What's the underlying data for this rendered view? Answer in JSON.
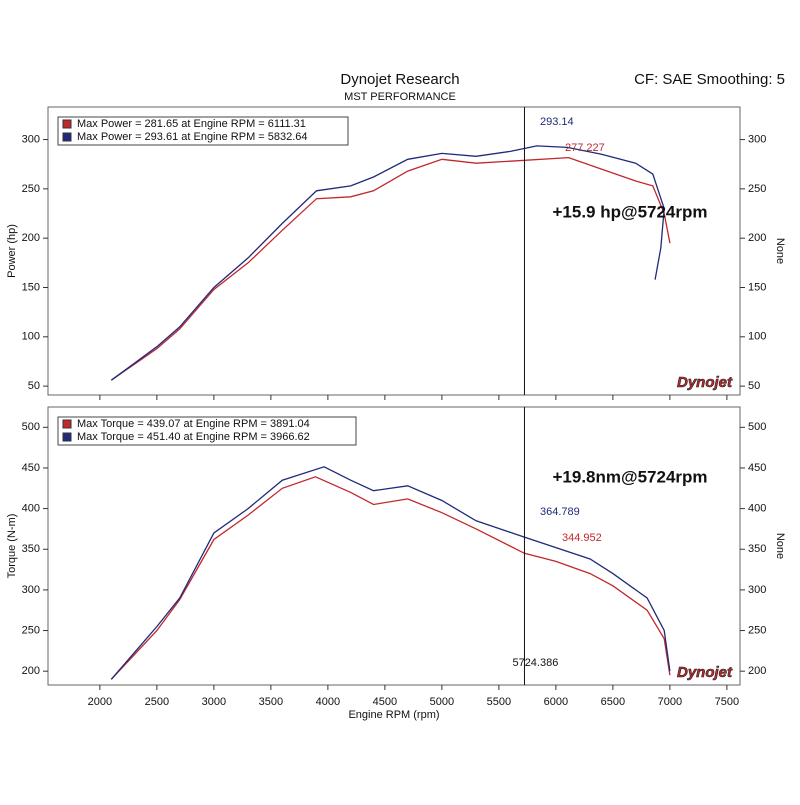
{
  "header": {
    "title": "Dynojet Research",
    "subtitle": "MST PERFORMANCE",
    "settings": "CF: SAE Smoothing: 5"
  },
  "chart_data": [
    {
      "type": "line",
      "ylabel": "Power (hp)",
      "y2label": "None",
      "annotation": "+15.9 hp@5724rpm",
      "logo": "Dynojet",
      "xlim": [
        1545,
        7615
      ],
      "xticks": [
        2000,
        2500,
        3000,
        3500,
        4000,
        4500,
        5000,
        5500,
        6000,
        6500,
        7000,
        7500
      ],
      "ylim": [
        41,
        333
      ],
      "yticks": [
        50,
        100,
        150,
        200,
        250,
        300
      ],
      "y2lim": [
        41,
        333
      ],
      "y2ticks": [
        50,
        100,
        150,
        200,
        250,
        300
      ],
      "cursor": 5724.386,
      "cursor_values": [
        293.14,
        277.227
      ],
      "series": [
        {
          "name": "Max Power = 281.65 at Engine RPM = 6111.31",
          "color": "#c0282d",
          "x": [
            2100,
            2500,
            2700,
            3000,
            3300,
            3600,
            3900,
            4200,
            4400,
            4700,
            5000,
            5300,
            5600,
            6111.31,
            6400,
            6700,
            6850,
            6950,
            7000
          ],
          "values": [
            56,
            88,
            108,
            148,
            175,
            208,
            240,
            242,
            248,
            268,
            280,
            276,
            278,
            281.65,
            270,
            258,
            253,
            225,
            195
          ]
        },
        {
          "name": "Max Power = 293.61 at Engine RPM = 5832.64",
          "color": "#1f2a7a",
          "x": [
            2100,
            2500,
            2700,
            3000,
            3300,
            3600,
            3900,
            4200,
            4400,
            4700,
            5000,
            5300,
            5600,
            5832.64,
            6100,
            6400,
            6700,
            6850,
            6950,
            6920,
            6870
          ],
          "values": [
            56,
            90,
            110,
            150,
            180,
            215,
            248,
            253,
            262,
            280,
            286,
            283,
            288,
            293.61,
            292,
            285,
            276,
            265,
            230,
            190,
            158
          ]
        }
      ]
    },
    {
      "type": "line",
      "ylabel": "Torque (N-m)",
      "y2label": "None",
      "xlabel": "Engine RPM (rpm)",
      "annotation": "+19.8nm@5724rpm",
      "logo": "Dynojet",
      "xlim": [
        1545,
        7615
      ],
      "xticks": [
        2000,
        2500,
        3000,
        3500,
        4000,
        4500,
        5000,
        5500,
        6000,
        6500,
        7000,
        7500
      ],
      "ylim": [
        183,
        525
      ],
      "yticks": [
        200,
        250,
        300,
        350,
        400,
        450,
        500
      ],
      "y2lim": [
        183,
        525
      ],
      "y2ticks": [
        200,
        250,
        300,
        350,
        400,
        450,
        500
      ],
      "cursor": 5724.386,
      "cursor_values": [
        364.789,
        344.952
      ],
      "series": [
        {
          "name": "Max Torque = 439.07 at Engine RPM = 3891.04",
          "color": "#c0282d",
          "x": [
            2100,
            2500,
            2700,
            3000,
            3300,
            3600,
            3891.04,
            4200,
            4400,
            4700,
            5000,
            5300,
            5724,
            6000,
            6300,
            6500,
            6800,
            6950,
            7000
          ],
          "values": [
            190,
            250,
            288,
            362,
            392,
            425,
            439.07,
            420,
            405,
            412,
            395,
            375,
            345,
            335,
            320,
            305,
            275,
            240,
            195
          ]
        },
        {
          "name": "Max Torque = 451.40 at Engine RPM = 3966.62",
          "color": "#1f2a7a",
          "x": [
            2100,
            2500,
            2700,
            3000,
            3300,
            3600,
            3966.62,
            4200,
            4400,
            4700,
            5000,
            5300,
            5724,
            6000,
            6300,
            6500,
            6800,
            6950,
            7000
          ],
          "values": [
            190,
            255,
            290,
            370,
            400,
            435,
            451.4,
            435,
            422,
            428,
            410,
            385,
            365,
            352,
            338,
            320,
            290,
            250,
            200
          ]
        }
      ]
    }
  ]
}
